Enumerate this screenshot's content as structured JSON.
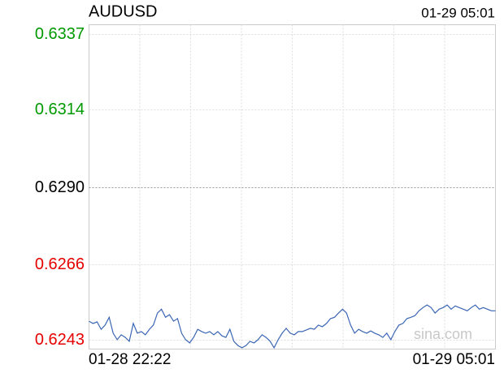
{
  "chart_data": {
    "type": "line",
    "title": "AUDUSD",
    "time_label": "01-29 05:01",
    "x_labels": [
      "01-28 22:22",
      "01-29 05:01"
    ],
    "watermark": "sina.com",
    "ylim": [
      0.624,
      0.634
    ],
    "yticks": [
      {
        "value": 0.6243,
        "label": "0.6243"
      },
      {
        "value": 0.6266,
        "label": "0.6266"
      },
      {
        "value": 0.629,
        "label": "0.6290"
      },
      {
        "value": 0.6314,
        "label": "0.6314"
      },
      {
        "value": 0.6337,
        "label": "0.6337"
      }
    ],
    "ytick_colors": [
      "#e60000",
      "#e60000",
      "#000000",
      "#009900",
      "#009900"
    ],
    "x_grid_divisions": 8,
    "grid": true,
    "series": [
      {
        "name": "AUDUSD",
        "color": "#3b66b5",
        "values": [
          0.62486,
          0.62479,
          0.62484,
          0.62461,
          0.62474,
          0.62498,
          0.62449,
          0.62429,
          0.62444,
          0.62436,
          0.62424,
          0.62479,
          0.62449,
          0.62454,
          0.62444,
          0.62461,
          0.62474,
          0.62511,
          0.62523,
          0.62498,
          0.62506,
          0.62486,
          0.62494,
          0.62449,
          0.62429,
          0.62419,
          0.62436,
          0.62461,
          0.62454,
          0.62449,
          0.62454,
          0.62444,
          0.62454,
          0.62441,
          0.62436,
          0.62461,
          0.62424,
          0.62411,
          0.62404,
          0.62411,
          0.62424,
          0.62419,
          0.62429,
          0.62444,
          0.62436,
          0.62424,
          0.62404,
          0.62429,
          0.62449,
          0.62464,
          0.62449,
          0.62444,
          0.62454,
          0.62454,
          0.62459,
          0.62464,
          0.62461,
          0.62474,
          0.62469,
          0.62479,
          0.62494,
          0.62498,
          0.62511,
          0.62523,
          0.62511,
          0.62474,
          0.62449,
          0.62461,
          0.62454,
          0.62449,
          0.62456,
          0.62449,
          0.62444,
          0.62436,
          0.62449,
          0.62429,
          0.62454,
          0.62474,
          0.62479,
          0.62494,
          0.62498,
          0.62503,
          0.62518,
          0.62528,
          0.62536,
          0.62528,
          0.62511,
          0.62523,
          0.62528,
          0.62536,
          0.62523,
          0.62533,
          0.62528,
          0.62523,
          0.62518,
          0.62528,
          0.62536,
          0.62523,
          0.62528,
          0.62523,
          0.62518,
          0.62518
        ]
      }
    ]
  }
}
